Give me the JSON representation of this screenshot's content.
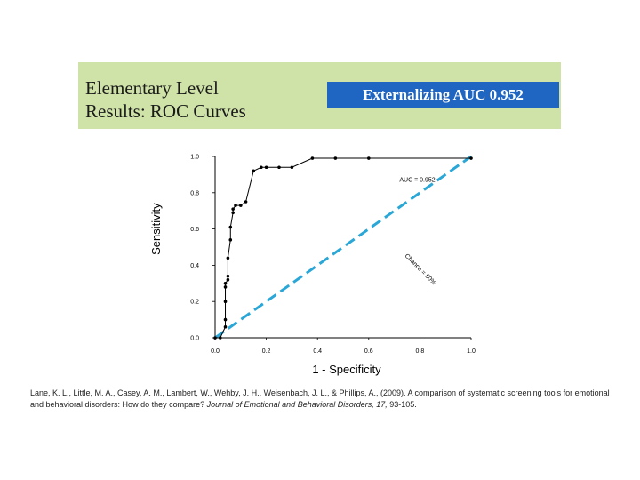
{
  "slide": {
    "title_line1": "Elementary Level",
    "title_line2": "Results: ROC Curves",
    "banner": "Externalizing AUC 0.952",
    "colors": {
      "title_band": "#cfe3a8",
      "banner": "#1f66c2",
      "chance_line": "#2aa7d6",
      "roc_curve": "#000000"
    }
  },
  "chart_data": {
    "type": "line",
    "xlabel": "1 - Specificity",
    "ylabel": "Sensitivity",
    "xlim": [
      0.0,
      1.0
    ],
    "ylim": [
      0.0,
      1.0
    ],
    "xticks": [
      "0.0",
      "0.2",
      "0.4",
      "0.6",
      "0.8",
      "1.0"
    ],
    "yticks": [
      "0.0",
      "0.2",
      "0.4",
      "0.6",
      "0.8",
      "1.0"
    ],
    "grid": false,
    "annotations": {
      "auc_label": "AUC = 0.952",
      "chance_label": "Chance = 50%"
    },
    "series": [
      {
        "style": "solid line with markers",
        "x": [
          0.0,
          0.02,
          0.04,
          0.04,
          0.04,
          0.04,
          0.04,
          0.05,
          0.05,
          0.05,
          0.06,
          0.06,
          0.07,
          0.07,
          0.08,
          0.1,
          0.12,
          0.15,
          0.18,
          0.2,
          0.25,
          0.3,
          0.38,
          0.47,
          0.6,
          1.0
        ],
        "y": [
          0.0,
          0.0,
          0.06,
          0.1,
          0.2,
          0.28,
          0.3,
          0.32,
          0.34,
          0.44,
          0.54,
          0.61,
          0.69,
          0.71,
          0.73,
          0.73,
          0.75,
          0.92,
          0.94,
          0.94,
          0.94,
          0.94,
          0.99,
          0.99,
          0.99,
          0.99
        ]
      },
      {
        "style": "dashed",
        "x": [
          0.0,
          1.0
        ],
        "y": [
          0.0,
          1.0
        ]
      }
    ]
  },
  "citation": {
    "pre": "Lane, K. L., Little, M. A., Casey, A. M., Lambert, W., Wehby, J. H., Weisenbach, J. L., & Phillips, A., (2009). A comparison of systematic screening tools for emotional and behavioral disorders: How do they compare? ",
    "journal": "Journal of Emotional and Behavioral Disorders, 17,",
    "post": " 93-105."
  }
}
